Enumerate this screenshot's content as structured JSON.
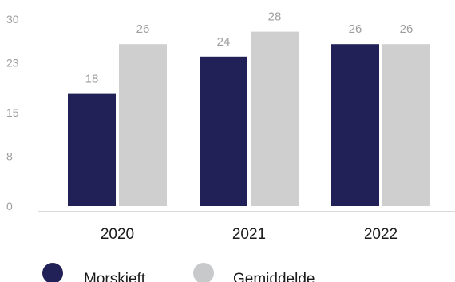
{
  "chart_data": {
    "type": "bar",
    "title": "",
    "xlabel": "",
    "ylabel": "",
    "categories": [
      "2020",
      "2021",
      "2022"
    ],
    "series": [
      {
        "name": "Morskieft",
        "values": [
          18,
          24,
          26
        ],
        "color": "#222157"
      },
      {
        "name": "Gemiddelde",
        "values": [
          26,
          28,
          26
        ],
        "color": "#cfcfcf"
      }
    ],
    "ylim": [
      0,
      30
    ],
    "yticks": [
      0,
      8,
      15,
      23,
      30
    ],
    "grid": false,
    "data_labels": true,
    "legend_position": "bottom-left"
  }
}
